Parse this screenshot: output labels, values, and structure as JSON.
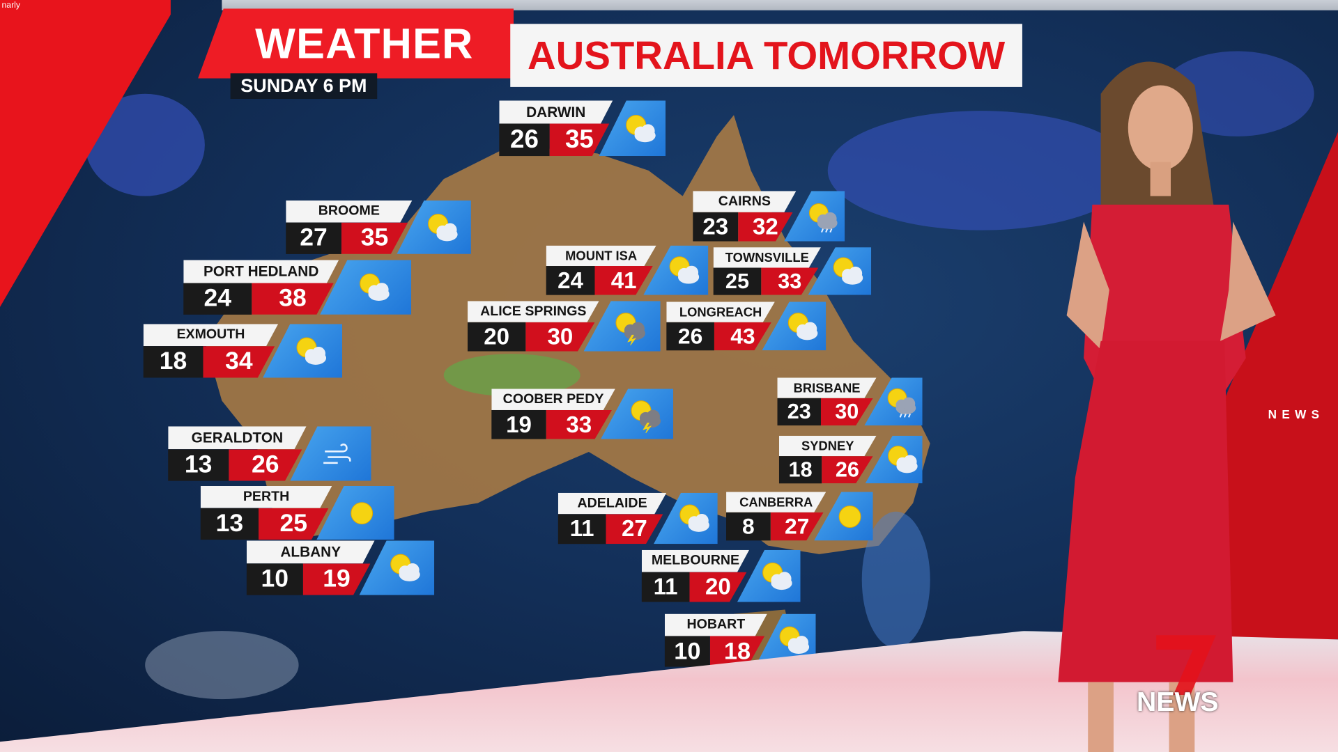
{
  "watermark": "narly",
  "header": {
    "weather_label": "WEATHER",
    "title": "AUSTRALIA TOMORROW",
    "subtitle": "SUNDAY 6 PM"
  },
  "colors": {
    "brand_red": "#ee1c25",
    "min_bg": "#1a1a1a",
    "max_bg": "#d10f1d",
    "icon_bg": "#2f8ae3"
  },
  "cities": [
    {
      "name": "DARWIN",
      "min": "26",
      "max": "35",
      "icon": "sun-cloud-icon"
    },
    {
      "name": "BROOME",
      "min": "27",
      "max": "35",
      "icon": "sun-cloud-icon"
    },
    {
      "name": "CAIRNS",
      "min": "23",
      "max": "32",
      "icon": "sun-cloud-rain-icon"
    },
    {
      "name": "MOUNT ISA",
      "min": "24",
      "max": "41",
      "icon": "sun-cloud-icon"
    },
    {
      "name": "TOWNSVILLE",
      "min": "25",
      "max": "33",
      "icon": "sun-cloud-icon"
    },
    {
      "name": "PORT HEDLAND",
      "min": "24",
      "max": "38",
      "icon": "sun-cloud-icon"
    },
    {
      "name": "ALICE SPRINGS",
      "min": "20",
      "max": "30",
      "icon": "storm-icon"
    },
    {
      "name": "LONGREACH",
      "min": "26",
      "max": "43",
      "icon": "sun-cloud-icon"
    },
    {
      "name": "EXMOUTH",
      "min": "18",
      "max": "34",
      "icon": "sun-cloud-icon"
    },
    {
      "name": "COOBER PEDY",
      "min": "19",
      "max": "33",
      "icon": "storm-icon"
    },
    {
      "name": "BRISBANE",
      "min": "23",
      "max": "30",
      "icon": "sun-cloud-rain-icon"
    },
    {
      "name": "GERALDTON",
      "min": "13",
      "max": "26",
      "icon": "wind-icon"
    },
    {
      "name": "SYDNEY",
      "min": "18",
      "max": "26",
      "icon": "sun-cloud-icon"
    },
    {
      "name": "PERTH",
      "min": "13",
      "max": "25",
      "icon": "sun-icon"
    },
    {
      "name": "ADELAIDE",
      "min": "11",
      "max": "27",
      "icon": "sun-cloud-icon"
    },
    {
      "name": "CANBERRA",
      "min": "8",
      "max": "27",
      "icon": "sun-icon"
    },
    {
      "name": "ALBANY",
      "min": "10",
      "max": "19",
      "icon": "sun-cloud-icon"
    },
    {
      "name": "MELBOURNE",
      "min": "11",
      "max": "20",
      "icon": "sun-cloud-icon"
    },
    {
      "name": "HOBART",
      "min": "10",
      "max": "18",
      "icon": "sun-cloud-icon"
    }
  ],
  "branding": {
    "side_text": "NEWS",
    "logo_number": "7",
    "logo_text": "NEWS"
  }
}
